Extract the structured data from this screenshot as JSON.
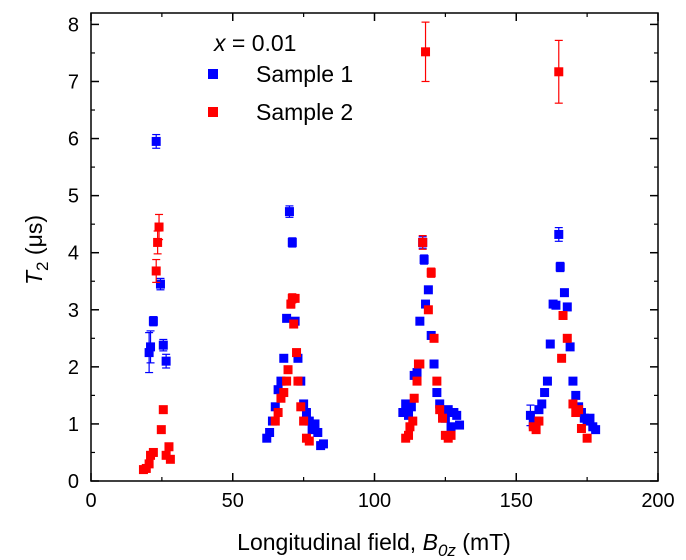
{
  "chart_data": {
    "type": "scatter",
    "annotation": {
      "var": "x",
      "rest": " = 0.01"
    },
    "xlabel": {
      "main": "Longitudinal field, ",
      "sym": "B",
      "sub": "0z",
      "unit": " (mT)"
    },
    "ylabel": {
      "sym": "T",
      "sub": "2",
      "unit": " (μs)"
    },
    "xlim": [
      0,
      200
    ],
    "ylim": [
      0,
      8.2
    ],
    "xticks": [
      0,
      50,
      100,
      150,
      200
    ],
    "yticks": [
      0,
      1,
      2,
      3,
      4,
      5,
      6,
      7,
      8
    ],
    "grid": false,
    "legend_position": "top-left",
    "series": [
      {
        "name": "Sample 1",
        "color": "#0000ff",
        "points": [
          [
            20.5,
            2.25,
            0.35
          ],
          [
            21.0,
            2.35,
            0.28
          ],
          [
            22.0,
            2.8,
            0.08
          ],
          [
            23.0,
            5.95,
            0.12
          ],
          [
            24.5,
            3.45,
            0.1
          ],
          [
            25.5,
            2.38,
            0.1
          ],
          [
            26.5,
            2.1,
            0.12
          ],
          [
            62.0,
            0.75,
            0.05
          ],
          [
            63.0,
            0.85,
            0.05
          ],
          [
            64.0,
            1.05,
            0.05
          ],
          [
            65.0,
            1.3,
            0.05
          ],
          [
            66.0,
            1.6,
            0.05
          ],
          [
            67.0,
            1.75,
            0.05
          ],
          [
            68.0,
            2.15,
            0.05
          ],
          [
            69.0,
            2.85,
            0.06
          ],
          [
            70.0,
            4.72,
            0.1
          ],
          [
            71.0,
            4.18,
            0.08
          ],
          [
            72.0,
            2.8,
            0.06
          ],
          [
            73.0,
            2.15,
            0.05
          ],
          [
            74.0,
            1.75,
            0.05
          ],
          [
            75.0,
            1.35,
            0.05
          ],
          [
            76.0,
            1.2,
            0.05
          ],
          [
            77.0,
            1.05,
            0.05
          ],
          [
            78.0,
            0.9,
            0.05
          ],
          [
            79.0,
            1.0,
            0.05
          ],
          [
            80.0,
            0.85,
            0.05
          ],
          [
            81.0,
            0.62,
            0.05
          ],
          [
            82.0,
            0.65,
            0.05
          ],
          [
            110.0,
            1.2,
            0.05
          ],
          [
            111.0,
            1.35,
            0.05
          ],
          [
            112.0,
            1.15,
            0.05
          ],
          [
            113.0,
            1.3,
            0.05
          ],
          [
            114.0,
            1.85,
            0.05
          ],
          [
            115.0,
            1.9,
            0.05
          ],
          [
            116.0,
            2.8,
            0.06
          ],
          [
            117.0,
            4.18,
            0.1
          ],
          [
            117.5,
            3.88,
            0.08
          ],
          [
            118.0,
            3.1,
            0.06
          ],
          [
            119.0,
            3.35,
            0.06
          ],
          [
            120.0,
            2.55,
            0.06
          ],
          [
            121.0,
            2.05,
            0.05
          ],
          [
            122.0,
            1.55,
            0.05
          ],
          [
            123.0,
            1.35,
            0.05
          ],
          [
            124.0,
            1.15,
            0.05
          ],
          [
            125.0,
            1.1,
            0.05
          ],
          [
            126.0,
            1.25,
            0.05
          ],
          [
            127.0,
            0.95,
            0.05
          ],
          [
            128.0,
            1.2,
            0.05
          ],
          [
            129.0,
            1.15,
            0.05
          ],
          [
            130.0,
            0.98,
            0.05
          ],
          [
            155.0,
            1.15,
            0.18
          ],
          [
            156.0,
            1.0,
            0.05
          ],
          [
            157.0,
            1.05,
            0.05
          ],
          [
            158.0,
            1.25,
            0.05
          ],
          [
            159.0,
            1.35,
            0.05
          ],
          [
            160.0,
            1.55,
            0.05
          ],
          [
            161.0,
            1.75,
            0.05
          ],
          [
            162.0,
            2.4,
            0.05
          ],
          [
            163.0,
            3.1,
            0.06
          ],
          [
            164.0,
            3.08,
            0.06
          ],
          [
            165.0,
            4.32,
            0.12
          ],
          [
            165.5,
            3.75,
            0.08
          ],
          [
            167.0,
            3.3,
            0.06
          ],
          [
            168.0,
            3.05,
            0.06
          ],
          [
            169.0,
            2.35,
            0.05
          ],
          [
            170.0,
            1.75,
            0.05
          ],
          [
            171.0,
            1.5,
            0.05
          ],
          [
            172.0,
            1.3,
            0.05
          ],
          [
            173.0,
            1.2,
            0.05
          ],
          [
            174.0,
            1.1,
            0.05
          ],
          [
            175.0,
            1.05,
            0.05
          ],
          [
            176.0,
            1.1,
            0.05
          ],
          [
            177.0,
            0.95,
            0.05
          ],
          [
            178.0,
            0.9,
            0.05
          ]
        ]
      },
      {
        "name": "Sample 2",
        "color": "#ff0000",
        "points": [
          [
            18.5,
            0.2,
            0.03
          ],
          [
            19.5,
            0.22,
            0.03
          ],
          [
            20.5,
            0.3,
            0.03
          ],
          [
            21.0,
            0.45,
            0.04
          ],
          [
            22.0,
            0.5,
            0.04
          ],
          [
            23.0,
            3.68,
            0.2
          ],
          [
            23.5,
            4.18,
            0.2
          ],
          [
            24.0,
            4.45,
            0.22
          ],
          [
            24.8,
            0.9,
            0.05
          ],
          [
            25.5,
            1.25,
            0.05
          ],
          [
            26.5,
            0.45,
            0.04
          ],
          [
            27.5,
            0.6,
            0.04
          ],
          [
            28.0,
            0.38,
            0.03
          ],
          [
            65.0,
            1.05,
            0.05
          ],
          [
            66.0,
            1.2,
            0.05
          ],
          [
            67.0,
            1.45,
            0.05
          ],
          [
            68.0,
            1.55,
            0.05
          ],
          [
            69.0,
            1.75,
            0.05
          ],
          [
            69.5,
            1.95,
            0.05
          ],
          [
            70.5,
            3.1,
            0.07
          ],
          [
            71.0,
            3.2,
            0.08
          ],
          [
            71.5,
            2.75,
            0.06
          ],
          [
            72.0,
            3.2,
            0.06
          ],
          [
            72.5,
            2.25,
            0.05
          ],
          [
            73.0,
            1.75,
            0.05
          ],
          [
            74.0,
            1.3,
            0.05
          ],
          [
            75.0,
            1.05,
            0.05
          ],
          [
            76.0,
            0.75,
            0.05
          ],
          [
            77.0,
            0.7,
            0.05
          ],
          [
            111.0,
            0.75,
            0.05
          ],
          [
            112.0,
            0.8,
            0.05
          ],
          [
            112.5,
            0.95,
            0.05
          ],
          [
            113.5,
            1.05,
            0.05
          ],
          [
            114.0,
            1.45,
            0.05
          ],
          [
            115.0,
            1.75,
            0.05
          ],
          [
            115.5,
            2.05,
            0.05
          ],
          [
            116.0,
            2.05,
            0.05
          ],
          [
            117.0,
            4.18,
            0.12
          ],
          [
            118.0,
            7.52,
            0.52
          ],
          [
            119.0,
            3.0,
            0.06
          ],
          [
            120.0,
            3.65,
            0.08
          ],
          [
            121.0,
            2.5,
            0.06
          ],
          [
            122.0,
            1.75,
            0.05
          ],
          [
            123.0,
            1.25,
            0.05
          ],
          [
            124.0,
            1.1,
            0.05
          ],
          [
            125.0,
            0.8,
            0.05
          ],
          [
            126.0,
            0.75,
            0.05
          ],
          [
            127.0,
            0.8,
            0.05
          ],
          [
            156.0,
            0.95,
            0.05
          ],
          [
            157.0,
            0.9,
            0.05
          ],
          [
            158.0,
            1.05,
            0.05
          ],
          [
            165.0,
            7.17,
            0.55
          ],
          [
            166.0,
            2.15,
            0.05
          ],
          [
            166.5,
            2.9,
            0.06
          ],
          [
            168.0,
            2.5,
            0.06
          ],
          [
            170.0,
            1.35,
            0.05
          ],
          [
            171.0,
            1.2,
            0.05
          ],
          [
            172.0,
            1.25,
            0.05
          ],
          [
            173.0,
            0.92,
            0.05
          ],
          [
            175.0,
            0.75,
            0.05
          ]
        ]
      }
    ]
  }
}
